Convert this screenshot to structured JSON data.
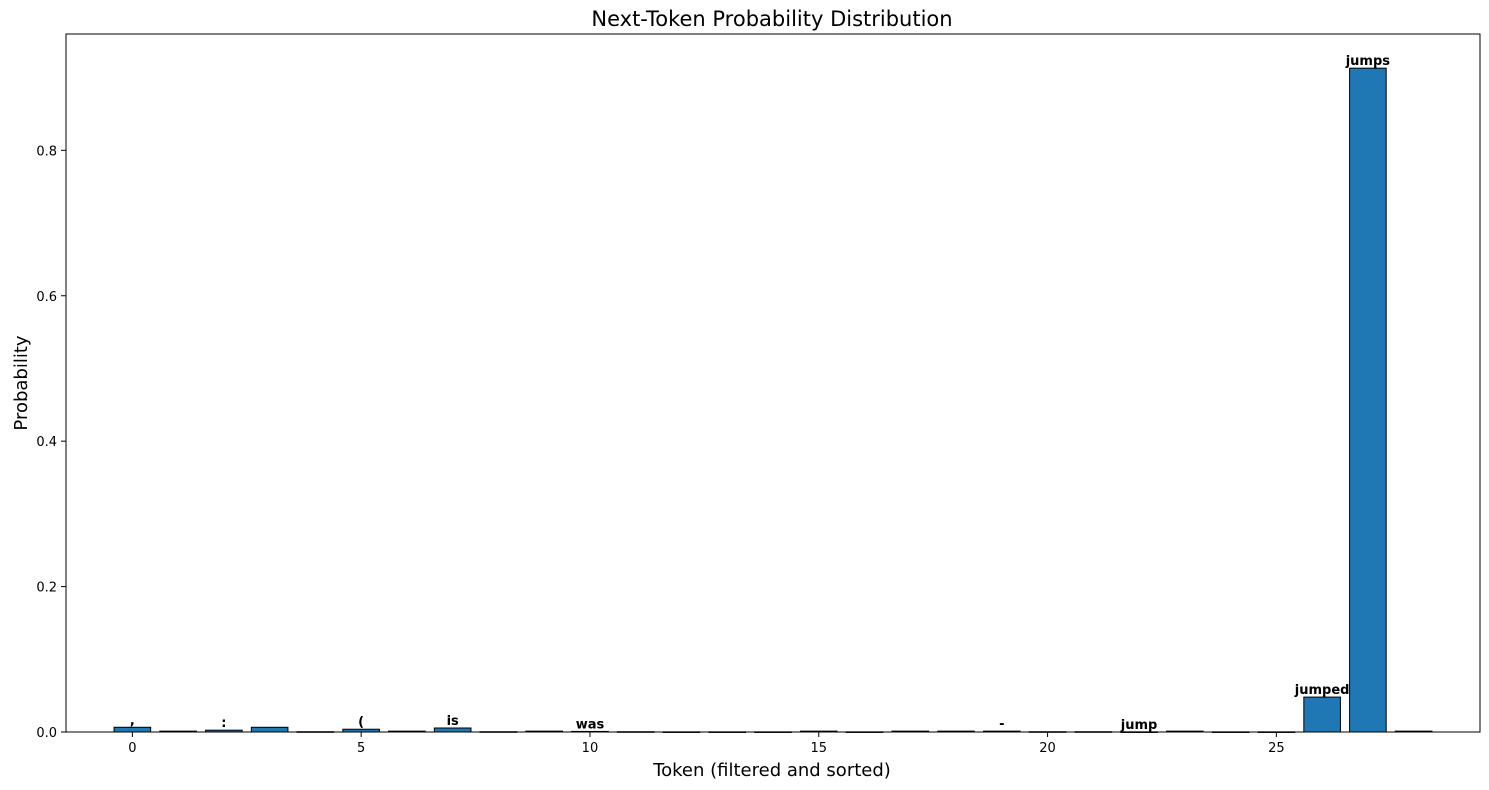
{
  "chart_data": {
    "type": "bar",
    "title": "Next-Token Probability Distribution",
    "xlabel": "Token (filtered and sorted)",
    "ylabel": "Probability",
    "xlim": [
      -1.45,
      29.45
    ],
    "ylim": [
      0,
      0.96
    ],
    "xticks": [
      0,
      5,
      10,
      15,
      20,
      25
    ],
    "yticks": [
      0.0,
      0.2,
      0.4,
      0.6,
      0.8
    ],
    "bar_color": "#1f77b4",
    "edge_color": "#000000",
    "grid": false,
    "x": [
      0,
      1,
      2,
      3,
      4,
      5,
      6,
      7,
      8,
      9,
      10,
      11,
      12,
      13,
      14,
      15,
      16,
      17,
      18,
      19,
      20,
      21,
      22,
      23,
      24,
      25,
      26,
      27,
      28
    ],
    "values": [
      0.0065,
      0.0012,
      0.0025,
      0.0065,
      0.0004,
      0.0038,
      0.0012,
      0.0055,
      0.0004,
      0.0012,
      0.0008,
      0.0004,
      0.0002,
      0.0002,
      0.0002,
      0.0012,
      0.0002,
      0.0012,
      0.0012,
      0.0012,
      0.0004,
      0.0004,
      0.0002,
      0.0012,
      0.0002,
      0.0002,
      0.048,
      0.913,
      0.0012
    ],
    "labels": [
      ",",
      "",
      ":",
      "",
      "",
      "(",
      "",
      "is",
      "",
      "",
      "was",
      "",
      "",
      "",
      "",
      "",
      "",
      "",
      "",
      "-",
      "",
      "",
      "jump",
      "",
      "",
      "",
      "jumped",
      "jumps",
      ""
    ]
  }
}
